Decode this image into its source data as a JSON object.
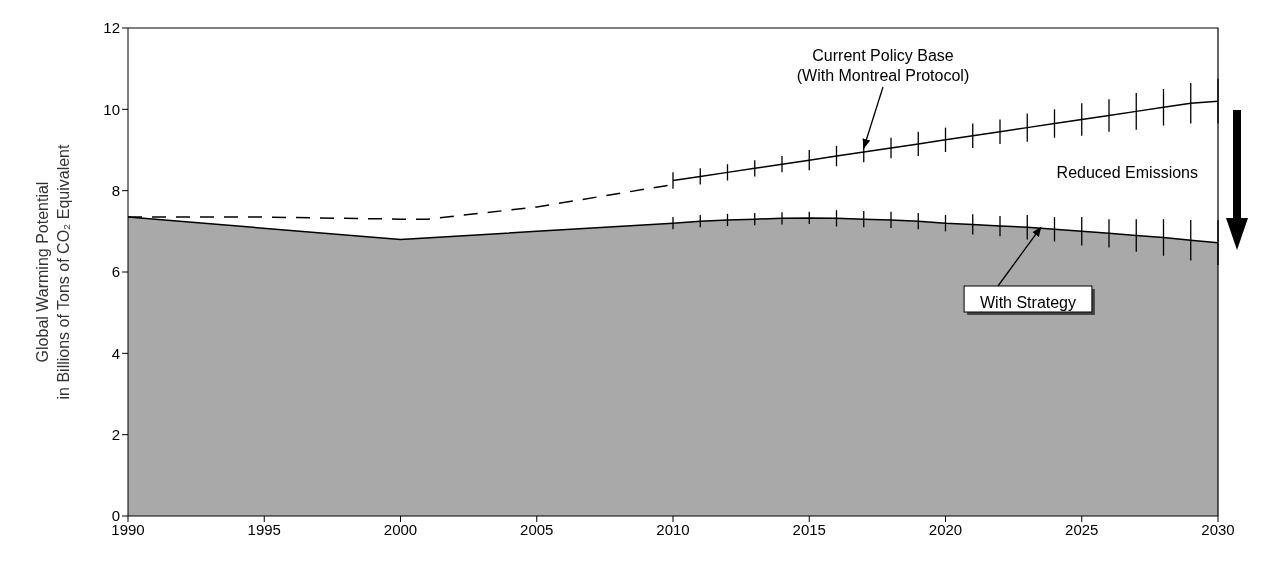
{
  "chart_data": {
    "type": "line",
    "ylabel": "Global Warming Potential\nin Billions of Tons of CO₂ Equivalent",
    "xlim": [
      1990,
      2030
    ],
    "xticks": [
      1990,
      1995,
      2000,
      2005,
      2010,
      2015,
      2020,
      2025,
      2030
    ],
    "ylim": [
      0,
      12
    ],
    "yticks": [
      0,
      2,
      4,
      6,
      8,
      10,
      12
    ],
    "grid": false,
    "annotations": [
      "Reduced Emissions"
    ],
    "series": [
      {
        "type": "area",
        "name": "With Strategy",
        "color": "#a9a9a9",
        "x": [
          1990,
          2000,
          2005,
          2010,
          2011,
          2012,
          2013,
          2014,
          2015,
          2016,
          2017,
          2018,
          2019,
          2020,
          2021,
          2022,
          2023,
          2024,
          2025,
          2026,
          2027,
          2028,
          2029,
          2030
        ],
        "values": [
          7.35,
          6.8,
          7.0,
          7.2,
          7.25,
          7.28,
          7.3,
          7.32,
          7.33,
          7.32,
          7.3,
          7.28,
          7.25,
          7.2,
          7.17,
          7.13,
          7.1,
          7.05,
          7.0,
          6.95,
          6.9,
          6.85,
          6.78,
          6.72
        ],
        "errors": [
          null,
          null,
          null,
          0.15,
          0.15,
          0.15,
          0.15,
          0.15,
          0.15,
          0.2,
          0.2,
          0.2,
          0.2,
          0.2,
          0.25,
          0.25,
          0.3,
          0.3,
          0.35,
          0.35,
          0.4,
          0.45,
          0.5,
          0.55
        ]
      },
      {
        "color": "#000000",
        "line_style": "dashed",
        "x": [
          1990,
          1995,
          2000,
          2001,
          2005,
          2010
        ],
        "values": [
          7.35,
          7.35,
          7.3,
          7.3,
          7.6,
          8.15
        ]
      },
      {
        "name": "Current Policy Base\n(With Montreal Protocol)",
        "color": "#000000",
        "x": [
          2010,
          2011,
          2012,
          2013,
          2014,
          2015,
          2016,
          2017,
          2018,
          2019,
          2020,
          2021,
          2022,
          2023,
          2024,
          2025,
          2026,
          2027,
          2028,
          2029,
          2030
        ],
        "values": [
          8.25,
          8.35,
          8.45,
          8.55,
          8.65,
          8.75,
          8.85,
          8.95,
          9.05,
          9.15,
          9.25,
          9.35,
          9.45,
          9.55,
          9.65,
          9.75,
          9.85,
          9.95,
          10.05,
          10.15,
          10.2
        ],
        "errors": [
          0.2,
          0.2,
          0.2,
          0.2,
          0.2,
          0.25,
          0.25,
          0.25,
          0.25,
          0.3,
          0.3,
          0.3,
          0.3,
          0.35,
          0.35,
          0.4,
          0.4,
          0.45,
          0.45,
          0.5,
          0.55
        ]
      }
    ]
  }
}
